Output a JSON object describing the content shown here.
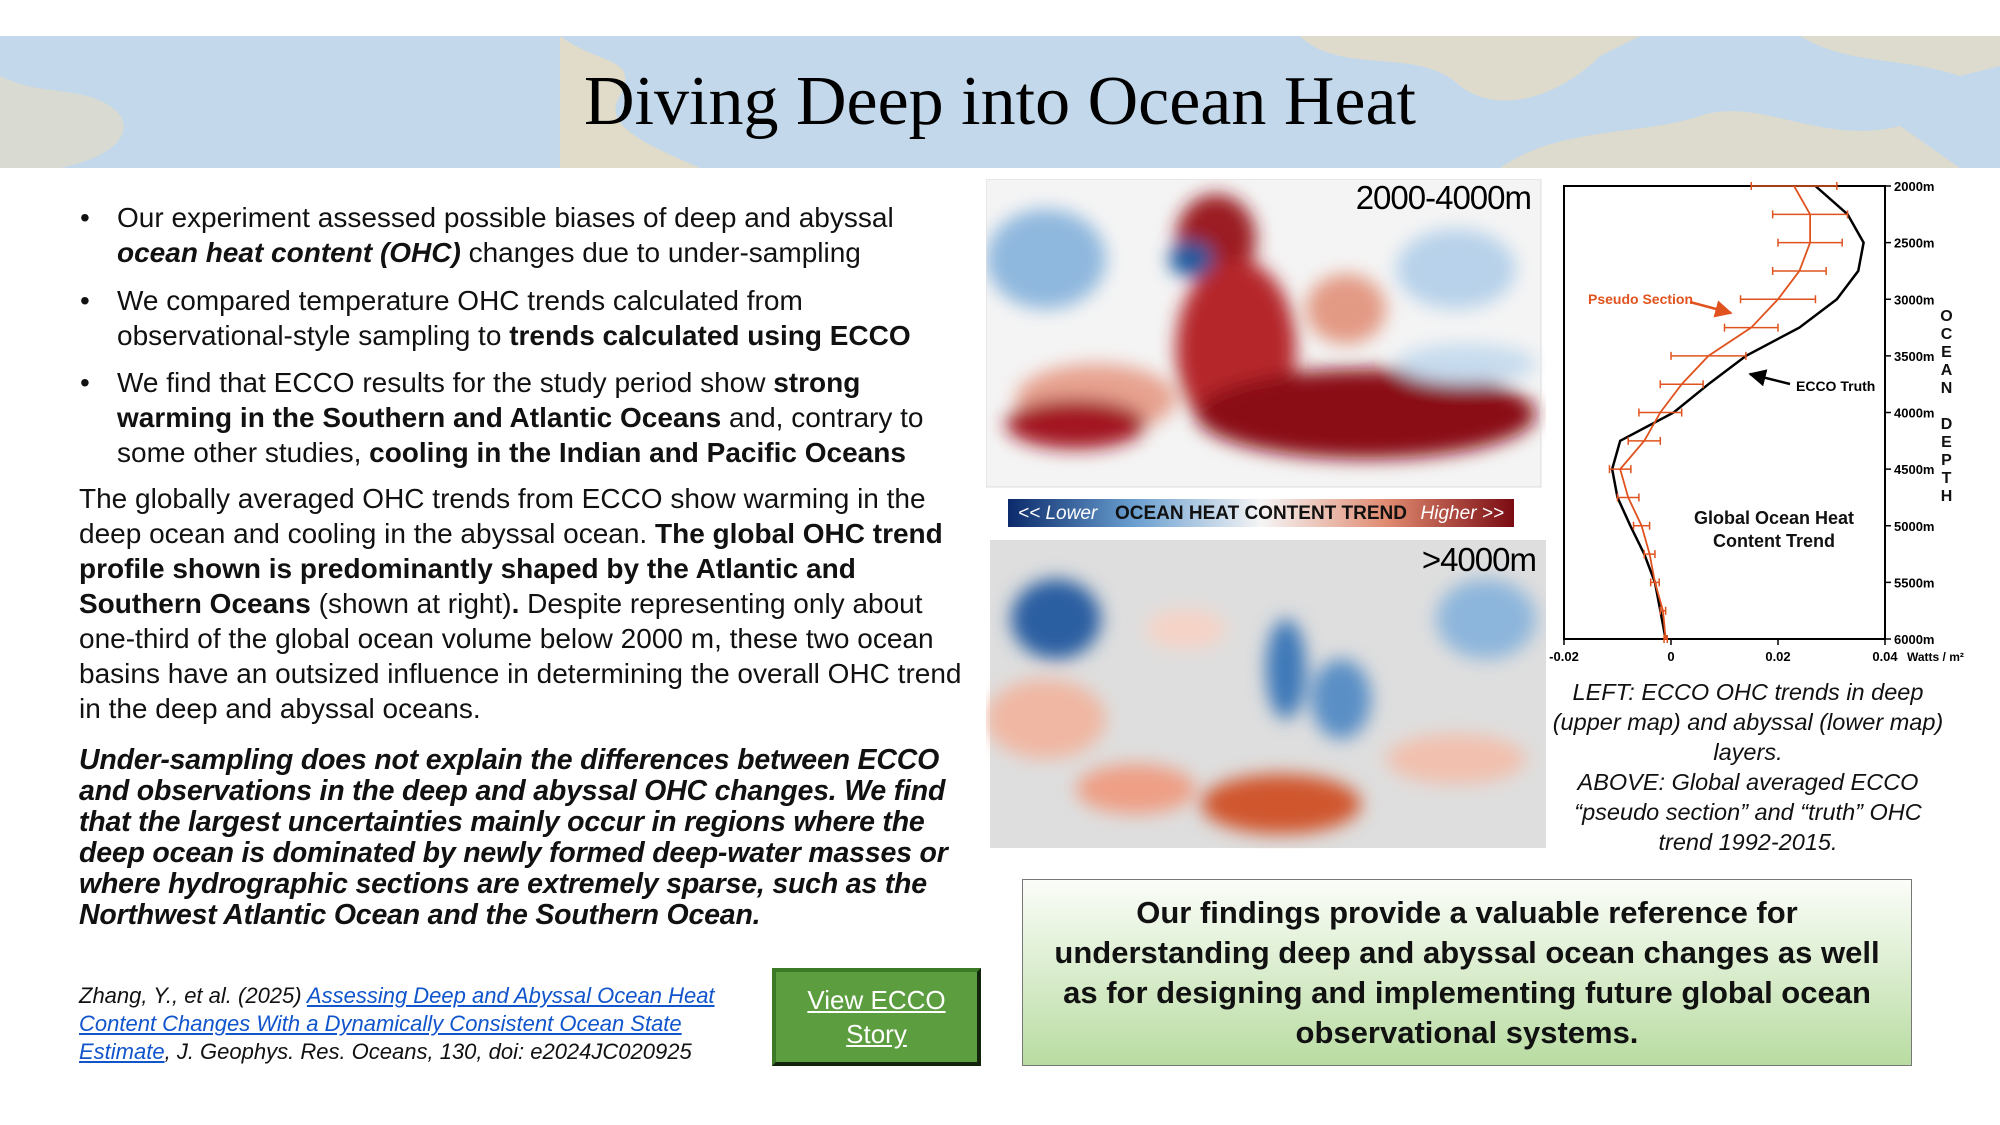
{
  "header": {
    "title": "Diving Deep into Ocean Heat"
  },
  "bullets": [
    [
      {
        "text": "Our experiment assessed possible biases of deep and abyssal "
      },
      {
        "text": "ocean heat content (OHC)",
        "style": "bold-italic"
      },
      {
        "text": " changes due to under-sampling"
      }
    ],
    [
      {
        "text": "We compared temperature OHC trends calculated from observational-style sampling to "
      },
      {
        "text": "trends calculated using ECCO",
        "style": "bold"
      }
    ],
    [
      {
        "text": "We find that ECCO results for the study period show "
      },
      {
        "text": "strong warming in the Southern and Atlantic Oceans",
        "style": "bold"
      },
      {
        "text": " and, contrary to some other studies, "
      },
      {
        "text": "cooling in the Indian and Pacific Oceans",
        "style": "bold"
      }
    ]
  ],
  "paragraphs": [
    [
      {
        "text": "The globally averaged OHC trends from ECCO show warming in the deep ocean and cooling in the abyssal ocean. "
      },
      {
        "text": "The global OHC trend profile shown is predominantly shaped by the Atlantic and Southern Oceans",
        "style": "bold"
      },
      {
        "text": " (shown at right)"
      },
      {
        "text": ".",
        "style": "bold"
      },
      {
        "text": " Despite representing only about one-third of the global ocean volume below 2000 m, these two ocean basins have an outsized influence in determining the overall OHC trend in the deep and abyssal oceans."
      }
    ],
    [
      {
        "text": "Under-sampling does not explain the differences between ECCO and observations in the deep and abyssal OHC changes. We find that the largest uncertainties mainly occur in regions where the deep ocean is dominated by newly formed deep-water masses or where hydrographic sections are extremely sparse, such as the Northwest Atlantic Ocean and the Southern Ocean.",
        "style": "bold-italic"
      }
    ]
  ],
  "citation": [
    {
      "text": "Zhang, Y., et al. (2025) ",
      "style": "italic"
    },
    {
      "text": "Assessing Deep and Abyssal Ocean Heat Content Changes With a Dynamically Consistent Ocean State Estimate",
      "style": "link"
    },
    {
      "text": ", J. Geophys. Res. Oceans, 130, doi: e2024JC020925",
      "style": "italic"
    }
  ],
  "button": {
    "label": "View ECCO Story"
  },
  "maps": {
    "upper_label": "2000-4000m",
    "lower_label": ">4000m",
    "colorbar": {
      "low": "<< Lower",
      "title": "OCEAN HEAT CONTENT TREND",
      "high": "Higher >>"
    }
  },
  "caption": [
    "LEFT: ECCO OHC trends in deep (upper map) and abyssal (lower map) layers.",
    "ABOVE: Global averaged ECCO “pseudo section” and “truth” OHC trend 1992-2015."
  ],
  "findings": "Our findings provide a valuable reference for understanding deep and abyssal ocean changes as well as for designing and implementing future global ocean observational systems.",
  "chart_data": {
    "type": "line",
    "title": "Global Ocean Heat Content Trend",
    "x_label": "Watts / m²",
    "y_label": "OCEAN DEPTH",
    "depths": [
      2000,
      2250,
      2500,
      2750,
      3000,
      3250,
      3500,
      3750,
      4000,
      4250,
      4500,
      4750,
      5000,
      5250,
      5500,
      5750,
      6000
    ],
    "series": [
      {
        "name": "ECCO Truth",
        "color": "#000000",
        "values": [
          0.027,
          0.033,
          0.036,
          0.035,
          0.031,
          0.024,
          0.014,
          0.007,
          0.0005,
          -0.0095,
          -0.011,
          -0.01,
          -0.0076,
          -0.005,
          -0.003,
          -0.002,
          -0.001
        ]
      },
      {
        "name": "Pseudo Section",
        "color": "#e0531f",
        "values": [
          0.023,
          0.026,
          0.026,
          0.024,
          0.02,
          0.015,
          0.007,
          0.002,
          -0.002,
          -0.005,
          -0.0095,
          -0.008,
          -0.0055,
          -0.004,
          -0.003,
          -0.0015,
          -0.001
        ],
        "errors": [
          0.008,
          0.007,
          0.006,
          0.005,
          0.007,
          0.005,
          0.007,
          0.004,
          0.004,
          0.003,
          0.002,
          0.002,
          0.0015,
          0.001,
          0.0008,
          0.0005,
          0.0003
        ]
      }
    ],
    "xlim": [
      -0.02,
      0.04
    ],
    "xticks": [
      -0.02,
      0,
      0.02,
      0.04
    ],
    "ylim": [
      2000,
      6000
    ],
    "yticks": [
      {
        "value": 2000,
        "label": "2000m"
      },
      {
        "value": 2500,
        "label": "2500m"
      },
      {
        "value": 3000,
        "label": "3000m"
      },
      {
        "value": 3500,
        "label": "3500m"
      },
      {
        "value": 4000,
        "label": "4000m"
      },
      {
        "value": 4500,
        "label": "4500m"
      },
      {
        "value": 5000,
        "label": "5000m"
      },
      {
        "value": 5500,
        "label": "5500m"
      },
      {
        "value": 6000,
        "label": "6000m"
      }
    ]
  }
}
